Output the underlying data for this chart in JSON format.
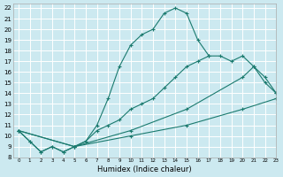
{
  "xlabel": "Humidex (Indice chaleur)",
  "bg_color": "#cce9f0",
  "line_color": "#1a7a6e",
  "grid_color": "#ffffff",
  "xlim": [
    -0.5,
    23
  ],
  "ylim": [
    8,
    22.4
  ],
  "xticks": [
    0,
    1,
    2,
    3,
    4,
    5,
    6,
    7,
    8,
    9,
    10,
    11,
    12,
    13,
    14,
    15,
    16,
    17,
    18,
    19,
    20,
    21,
    22,
    23
  ],
  "yticks": [
    8,
    9,
    10,
    11,
    12,
    13,
    14,
    15,
    16,
    17,
    18,
    19,
    20,
    21,
    22
  ],
  "series": [
    {
      "x": [
        0,
        1,
        2,
        3,
        4,
        5,
        6,
        7,
        8,
        9,
        10,
        11,
        12,
        13,
        14,
        15,
        16,
        17
      ],
      "y": [
        10.5,
        9.5,
        8.5,
        9.0,
        8.5,
        9.0,
        9.5,
        11.0,
        13.5,
        16.5,
        18.5,
        19.5,
        20.0,
        21.5,
        22.0,
        21.5,
        19.0,
        17.5
      ]
    },
    {
      "x": [
        0,
        1,
        2,
        3,
        4,
        5,
        6,
        7,
        8,
        9,
        10,
        11,
        12,
        13,
        14,
        15,
        16,
        17,
        18,
        19,
        20,
        21,
        22,
        23
      ],
      "y": [
        10.5,
        9.5,
        8.5,
        9.0,
        8.5,
        9.0,
        9.5,
        10.5,
        11.0,
        11.5,
        12.5,
        13.0,
        13.5,
        14.5,
        15.5,
        16.5,
        17.0,
        17.5,
        17.5,
        17.0,
        17.5,
        16.5,
        15.0,
        14.0
      ]
    },
    {
      "x": [
        0,
        5,
        10,
        15,
        20,
        21,
        22,
        23
      ],
      "y": [
        10.5,
        9.0,
        10.5,
        12.5,
        15.5,
        16.5,
        15.5,
        14.0
      ]
    },
    {
      "x": [
        0,
        5,
        10,
        15,
        20,
        23
      ],
      "y": [
        10.5,
        9.0,
        10.0,
        11.0,
        12.5,
        13.5
      ]
    }
  ]
}
